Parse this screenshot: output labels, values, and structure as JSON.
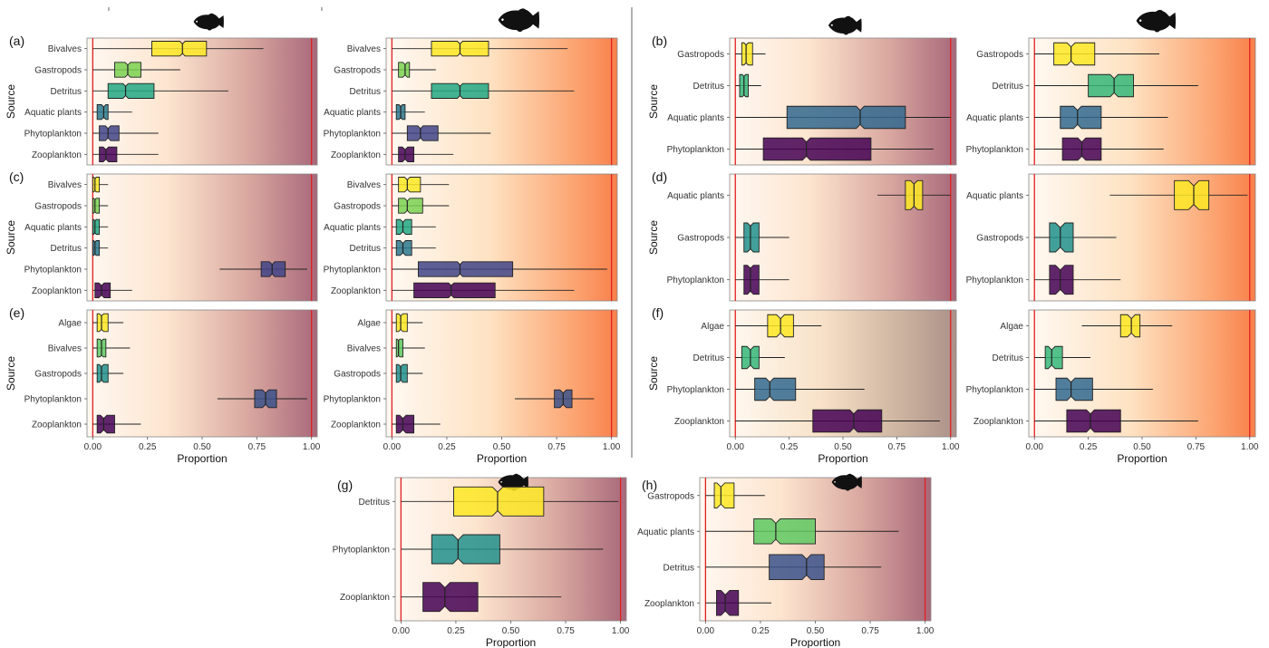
{
  "figure": {
    "xlabel": "Proportion",
    "ylabel": "Source",
    "xticks": [
      "0.00",
      "0.25",
      "0.50",
      "0.75",
      "1.00"
    ],
    "colors": {
      "fish_silhouette": "#111111",
      "limit_line": "#e02020",
      "gradient_a_end": "#a8687a",
      "gradient_b_end": "#f8804a"
    }
  },
  "chart_data": [
    {
      "panel": "a",
      "type": "boxplot",
      "gradient": "mauve",
      "xlim": [
        0,
        1
      ],
      "categories": [
        "Bivalves",
        "Gastropods",
        "Detritus",
        "Aquatic plants",
        "Phytoplankton",
        "Zooplankton"
      ],
      "boxes": [
        {
          "q1": 0.27,
          "median": 0.41,
          "q3": 0.52,
          "min": 0.0,
          "max": 0.78,
          "color": "#fde725"
        },
        {
          "q1": 0.1,
          "median": 0.16,
          "q3": 0.22,
          "min": 0.0,
          "max": 0.4,
          "color": "#7ad151"
        },
        {
          "q1": 0.07,
          "median": 0.15,
          "q3": 0.28,
          "min": 0.0,
          "max": 0.62,
          "color": "#22a884"
        },
        {
          "q1": 0.02,
          "median": 0.05,
          "q3": 0.07,
          "min": 0.0,
          "max": 0.18,
          "color": "#2a788e"
        },
        {
          "q1": 0.03,
          "median": 0.07,
          "q3": 0.12,
          "min": 0.0,
          "max": 0.3,
          "color": "#414487"
        },
        {
          "q1": 0.03,
          "median": 0.06,
          "q3": 0.11,
          "min": 0.0,
          "max": 0.3,
          "color": "#440154"
        }
      ]
    },
    {
      "panel": "a2",
      "type": "boxplot",
      "gradient": "orange",
      "xlim": [
        0,
        1
      ],
      "categories": [
        "Bivalves",
        "Gastropods",
        "Detritus",
        "Aquatic plants",
        "Phytoplankton",
        "Zooplankton"
      ],
      "boxes": [
        {
          "q1": 0.18,
          "median": 0.31,
          "q3": 0.44,
          "min": 0.0,
          "max": 0.8,
          "color": "#fde725"
        },
        {
          "q1": 0.03,
          "median": 0.06,
          "q3": 0.08,
          "min": 0.0,
          "max": 0.2,
          "color": "#7ad151"
        },
        {
          "q1": 0.18,
          "median": 0.31,
          "q3": 0.44,
          "min": 0.0,
          "max": 0.83,
          "color": "#22a884"
        },
        {
          "q1": 0.02,
          "median": 0.04,
          "q3": 0.06,
          "min": 0.0,
          "max": 0.15,
          "color": "#2a788e"
        },
        {
          "q1": 0.07,
          "median": 0.13,
          "q3": 0.21,
          "min": 0.0,
          "max": 0.45,
          "color": "#414487"
        },
        {
          "q1": 0.03,
          "median": 0.06,
          "q3": 0.1,
          "min": 0.0,
          "max": 0.28,
          "color": "#440154"
        }
      ]
    },
    {
      "panel": "b",
      "type": "boxplot",
      "gradient": "mauve",
      "xlim": [
        0,
        1
      ],
      "categories": [
        "Gastropods",
        "Detritus",
        "Aquatic plants",
        "Phytoplankton"
      ],
      "boxes": [
        {
          "q1": 0.03,
          "median": 0.05,
          "q3": 0.08,
          "min": 0.0,
          "max": 0.14,
          "color": "#fde725"
        },
        {
          "q1": 0.02,
          "median": 0.04,
          "q3": 0.06,
          "min": 0.0,
          "max": 0.12,
          "color": "#35b779"
        },
        {
          "q1": 0.24,
          "median": 0.58,
          "q3": 0.79,
          "min": 0.0,
          "max": 1.0,
          "color": "#31688e"
        },
        {
          "q1": 0.13,
          "median": 0.33,
          "q3": 0.63,
          "min": 0.0,
          "max": 0.92,
          "color": "#440154"
        }
      ]
    },
    {
      "panel": "b2",
      "type": "boxplot",
      "gradient": "orange",
      "xlim": [
        0,
        1
      ],
      "categories": [
        "Gastropods",
        "Detritus",
        "Aquatic plants",
        "Phytoplankton"
      ],
      "boxes": [
        {
          "q1": 0.09,
          "median": 0.17,
          "q3": 0.28,
          "min": 0.0,
          "max": 0.58,
          "color": "#fde725"
        },
        {
          "q1": 0.25,
          "median": 0.37,
          "q3": 0.46,
          "min": 0.0,
          "max": 0.76,
          "color": "#35b779"
        },
        {
          "q1": 0.12,
          "median": 0.2,
          "q3": 0.31,
          "min": 0.0,
          "max": 0.62,
          "color": "#31688e"
        },
        {
          "q1": 0.13,
          "median": 0.22,
          "q3": 0.31,
          "min": 0.0,
          "max": 0.6,
          "color": "#440154"
        }
      ]
    },
    {
      "panel": "c",
      "type": "boxplot",
      "gradient": "mauve",
      "xlim": [
        0,
        1
      ],
      "categories": [
        "Bivalves",
        "Gastropods",
        "Aquatic plants",
        "Detritus",
        "Phytoplankton",
        "Zooplankton"
      ],
      "boxes": [
        {
          "q1": 0.0,
          "median": 0.01,
          "q3": 0.03,
          "min": 0.0,
          "max": 0.07,
          "color": "#fde725"
        },
        {
          "q1": 0.0,
          "median": 0.01,
          "q3": 0.03,
          "min": 0.0,
          "max": 0.07,
          "color": "#7ad151"
        },
        {
          "q1": 0.0,
          "median": 0.01,
          "q3": 0.03,
          "min": 0.0,
          "max": 0.07,
          "color": "#22a884"
        },
        {
          "q1": 0.0,
          "median": 0.01,
          "q3": 0.03,
          "min": 0.0,
          "max": 0.07,
          "color": "#2a788e"
        },
        {
          "q1": 0.77,
          "median": 0.82,
          "q3": 0.88,
          "min": 0.58,
          "max": 0.98,
          "color": "#414487"
        },
        {
          "q1": 0.01,
          "median": 0.04,
          "q3": 0.08,
          "min": 0.0,
          "max": 0.18,
          "color": "#440154"
        }
      ]
    },
    {
      "panel": "c2",
      "type": "boxplot",
      "gradient": "orange",
      "xlim": [
        0,
        1
      ],
      "categories": [
        "Bivalves",
        "Gastropods",
        "Aquatic plants",
        "Detritus",
        "Phytoplankton",
        "Zooplankton"
      ],
      "boxes": [
        {
          "q1": 0.03,
          "median": 0.07,
          "q3": 0.13,
          "min": 0.0,
          "max": 0.26,
          "color": "#fde725"
        },
        {
          "q1": 0.03,
          "median": 0.07,
          "q3": 0.14,
          "min": 0.0,
          "max": 0.26,
          "color": "#7ad151"
        },
        {
          "q1": 0.02,
          "median": 0.05,
          "q3": 0.09,
          "min": 0.0,
          "max": 0.2,
          "color": "#22a884"
        },
        {
          "q1": 0.02,
          "median": 0.05,
          "q3": 0.09,
          "min": 0.0,
          "max": 0.2,
          "color": "#2a788e"
        },
        {
          "q1": 0.12,
          "median": 0.31,
          "q3": 0.55,
          "min": 0.0,
          "max": 0.98,
          "color": "#414487"
        },
        {
          "q1": 0.1,
          "median": 0.27,
          "q3": 0.47,
          "min": 0.0,
          "max": 0.83,
          "color": "#440154"
        }
      ]
    },
    {
      "panel": "d",
      "type": "boxplot",
      "gradient": "mauve",
      "xlim": [
        0,
        1
      ],
      "categories": [
        "Aquatic plants",
        "Gastropods",
        "Phytoplankton"
      ],
      "boxes": [
        {
          "q1": 0.79,
          "median": 0.83,
          "q3": 0.87,
          "min": 0.66,
          "max": 1.0,
          "color": "#fde725"
        },
        {
          "q1": 0.04,
          "median": 0.07,
          "q3": 0.11,
          "min": 0.0,
          "max": 0.25,
          "color": "#21918c"
        },
        {
          "q1": 0.04,
          "median": 0.07,
          "q3": 0.11,
          "min": 0.0,
          "max": 0.25,
          "color": "#440154"
        }
      ]
    },
    {
      "panel": "d2",
      "type": "boxplot",
      "gradient": "orange",
      "xlim": [
        0,
        1
      ],
      "categories": [
        "Aquatic plants",
        "Gastropods",
        "Phytoplankton"
      ],
      "boxes": [
        {
          "q1": 0.65,
          "median": 0.74,
          "q3": 0.81,
          "min": 0.35,
          "max": 0.99,
          "color": "#fde725"
        },
        {
          "q1": 0.07,
          "median": 0.12,
          "q3": 0.18,
          "min": 0.0,
          "max": 0.38,
          "color": "#21918c"
        },
        {
          "q1": 0.07,
          "median": 0.12,
          "q3": 0.18,
          "min": 0.0,
          "max": 0.4,
          "color": "#440154"
        }
      ]
    },
    {
      "panel": "e",
      "type": "boxplot",
      "gradient": "mauve",
      "xlim": [
        0,
        1
      ],
      "categories": [
        "Algae",
        "Bivalves",
        "Gastropods",
        "Phytoplankton",
        "Zooplankton"
      ],
      "boxes": [
        {
          "q1": 0.02,
          "median": 0.04,
          "q3": 0.07,
          "min": 0.0,
          "max": 0.14,
          "color": "#fde725"
        },
        {
          "q1": 0.02,
          "median": 0.04,
          "q3": 0.06,
          "min": 0.0,
          "max": 0.17,
          "color": "#5ec962"
        },
        {
          "q1": 0.02,
          "median": 0.04,
          "q3": 0.07,
          "min": 0.0,
          "max": 0.14,
          "color": "#21918c"
        },
        {
          "q1": 0.74,
          "median": 0.79,
          "q3": 0.84,
          "min": 0.57,
          "max": 0.98,
          "color": "#3b528b"
        },
        {
          "q1": 0.02,
          "median": 0.05,
          "q3": 0.1,
          "min": 0.0,
          "max": 0.22,
          "color": "#440154"
        }
      ]
    },
    {
      "panel": "e2",
      "type": "boxplot",
      "gradient": "orange",
      "xlim": [
        0,
        1
      ],
      "categories": [
        "Algae",
        "Bivalves",
        "Gastropods",
        "Phytoplankton",
        "Zooplankton"
      ],
      "boxes": [
        {
          "q1": 0.02,
          "median": 0.04,
          "q3": 0.07,
          "min": 0.0,
          "max": 0.14,
          "color": "#fde725"
        },
        {
          "q1": 0.02,
          "median": 0.03,
          "q3": 0.05,
          "min": 0.0,
          "max": 0.15,
          "color": "#5ec962"
        },
        {
          "q1": 0.02,
          "median": 0.04,
          "q3": 0.07,
          "min": 0.0,
          "max": 0.14,
          "color": "#21918c"
        },
        {
          "q1": 0.74,
          "median": 0.78,
          "q3": 0.82,
          "min": 0.56,
          "max": 0.92,
          "color": "#3b528b"
        },
        {
          "q1": 0.02,
          "median": 0.05,
          "q3": 0.1,
          "min": 0.0,
          "max": 0.22,
          "color": "#440154"
        }
      ]
    },
    {
      "panel": "f",
      "type": "boxplot",
      "gradient": "taupe",
      "xlim": [
        0,
        1
      ],
      "categories": [
        "Algae",
        "Detritus",
        "Phytoplankton",
        "Zooplankton"
      ],
      "boxes": [
        {
          "q1": 0.15,
          "median": 0.21,
          "q3": 0.27,
          "min": 0.0,
          "max": 0.4,
          "color": "#fde725"
        },
        {
          "q1": 0.03,
          "median": 0.07,
          "q3": 0.11,
          "min": 0.0,
          "max": 0.23,
          "color": "#35b779"
        },
        {
          "q1": 0.09,
          "median": 0.16,
          "q3": 0.28,
          "min": 0.0,
          "max": 0.6,
          "color": "#31688e"
        },
        {
          "q1": 0.36,
          "median": 0.55,
          "q3": 0.68,
          "min": 0.0,
          "max": 0.95,
          "color": "#440154"
        }
      ]
    },
    {
      "panel": "f2",
      "type": "boxplot",
      "gradient": "orange",
      "xlim": [
        0,
        1
      ],
      "categories": [
        "Algae",
        "Detritus",
        "Phytoplankton",
        "Zooplankton"
      ],
      "boxes": [
        {
          "q1": 0.4,
          "median": 0.45,
          "q3": 0.49,
          "min": 0.22,
          "max": 0.64,
          "color": "#fde725"
        },
        {
          "q1": 0.05,
          "median": 0.08,
          "q3": 0.13,
          "min": 0.0,
          "max": 0.26,
          "color": "#35b779"
        },
        {
          "q1": 0.1,
          "median": 0.17,
          "q3": 0.27,
          "min": 0.0,
          "max": 0.55,
          "color": "#31688e"
        },
        {
          "q1": 0.15,
          "median": 0.26,
          "q3": 0.4,
          "min": 0.0,
          "max": 0.76,
          "color": "#440154"
        }
      ]
    },
    {
      "panel": "g",
      "type": "boxplot",
      "gradient": "mauve",
      "xlim": [
        0,
        1
      ],
      "categories": [
        "Detritus",
        "Phytoplankton",
        "Zooplankton"
      ],
      "boxes": [
        {
          "q1": 0.24,
          "median": 0.44,
          "q3": 0.65,
          "min": 0.0,
          "max": 0.99,
          "color": "#fde725"
        },
        {
          "q1": 0.14,
          "median": 0.26,
          "q3": 0.45,
          "min": 0.0,
          "max": 0.92,
          "color": "#21918c"
        },
        {
          "q1": 0.1,
          "median": 0.2,
          "q3": 0.35,
          "min": 0.0,
          "max": 0.73,
          "color": "#440154"
        }
      ]
    },
    {
      "panel": "h",
      "type": "boxplot",
      "gradient": "mauve",
      "xlim": [
        0,
        1
      ],
      "categories": [
        "Gastropods",
        "Aquatic plants",
        "Detritus",
        "Zooplankton"
      ],
      "boxes": [
        {
          "q1": 0.04,
          "median": 0.07,
          "q3": 0.13,
          "min": 0.0,
          "max": 0.27,
          "color": "#fde725"
        },
        {
          "q1": 0.22,
          "median": 0.32,
          "q3": 0.5,
          "min": 0.0,
          "max": 0.88,
          "color": "#5ec962"
        },
        {
          "q1": 0.29,
          "median": 0.46,
          "q3": 0.54,
          "min": 0.0,
          "max": 0.8,
          "color": "#3b528b"
        },
        {
          "q1": 0.05,
          "median": 0.09,
          "q3": 0.15,
          "min": 0.0,
          "max": 0.3,
          "color": "#440154"
        }
      ]
    }
  ]
}
